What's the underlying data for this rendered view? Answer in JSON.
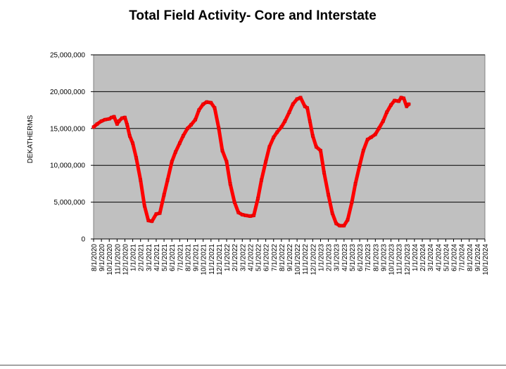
{
  "chart_data": {
    "type": "line",
    "title": "Total Field Activity- Core and Interstate",
    "xlabel": "",
    "ylabel": "DEKATHERMS",
    "ylim": [
      0,
      25000000
    ],
    "yticks": [
      0,
      5000000,
      10000000,
      15000000,
      20000000,
      25000000
    ],
    "ytick_labels": [
      "0",
      "5,000,000",
      "10,000,000",
      "15,000,000",
      "20,000,000",
      "25,000,000"
    ],
    "xtick_labels": [
      "8/1/2020",
      "9/1/2020",
      "10/1/2020",
      "11/1/2020",
      "12/1/2020",
      "1/1/2021",
      "2/1/2021",
      "3/1/2021",
      "4/1/2021",
      "5/1/2021",
      "6/1/2021",
      "7/1/2021",
      "8/1/2021",
      "9/1/2021",
      "10/1/2021",
      "11/1/2021",
      "12/1/2021",
      "1/1/2022",
      "2/1/2022",
      "3/1/2022",
      "4/1/2022",
      "5/1/2022",
      "6/1/2022",
      "7/1/2022",
      "8/1/2022",
      "9/1/2022",
      "10/1/2022",
      "11/1/2022",
      "12/1/2022",
      "1/1/2023",
      "2/1/2023",
      "3/1/2023",
      "4/1/2023",
      "5/1/2023",
      "6/1/2023",
      "7/1/2023",
      "8/1/2023",
      "9/1/2023",
      "10/1/2023",
      "11/1/2023",
      "12/1/2023",
      "1/1/2024",
      "2/1/2024",
      "3/1/2024",
      "4/1/2024",
      "5/1/2024",
      "6/1/2024",
      "7/1/2024",
      "8/1/2024",
      "9/1/2024",
      "10/1/2024"
    ],
    "grid": {
      "horizontal": true,
      "vertical": false
    },
    "colors": {
      "plot_background": "#c0c0c0",
      "series": "#ff0000",
      "grid": "#000000"
    },
    "series": [
      {
        "x": [
          "8/1/2020",
          "8/15/2020",
          "9/1/2020",
          "9/15/2020",
          "10/1/2020",
          "10/10/2020",
          "10/20/2020",
          "11/1/2020",
          "11/8/2020",
          "11/20/2020",
          "12/1/2020",
          "12/10/2020",
          "12/20/2020",
          "1/1/2021",
          "1/15/2021",
          "2/1/2021",
          "2/15/2021",
          "3/1/2021",
          "3/15/2021",
          "4/1/2021",
          "4/15/2021",
          "5/1/2021",
          "5/15/2021",
          "6/1/2021",
          "6/15/2021",
          "7/1/2021",
          "7/15/2021",
          "8/1/2021",
          "8/15/2021",
          "9/1/2021",
          "9/15/2021",
          "10/1/2021",
          "10/15/2021",
          "11/1/2021",
          "11/15/2021",
          "12/1/2021",
          "12/15/2021",
          "1/1/2022",
          "1/15/2022",
          "2/1/2022",
          "2/15/2022",
          "3/1/2022",
          "3/15/2022",
          "4/1/2022",
          "4/15/2022",
          "5/1/2022",
          "5/15/2022",
          "6/1/2022",
          "6/15/2022",
          "7/1/2022",
          "7/15/2022",
          "8/1/2022",
          "8/15/2022",
          "9/1/2022",
          "9/15/2022",
          "10/1/2022",
          "10/15/2022",
          "11/1/2022",
          "11/10/2022",
          "11/20/2022",
          "12/1/2022",
          "12/15/2022",
          "1/1/2023",
          "1/15/2023",
          "2/1/2023",
          "2/15/2023",
          "3/1/2023",
          "3/15/2023",
          "4/1/2023",
          "4/15/2023",
          "5/1/2023",
          "5/15/2023",
          "6/1/2023",
          "6/15/2023",
          "7/1/2023",
          "7/15/2023",
          "8/1/2023",
          "8/15/2023",
          "9/1/2023",
          "9/15/2023",
          "10/1/2023",
          "10/15/2023",
          "11/1/2023",
          "11/10/2023",
          "11/20/2023",
          "12/1/2023",
          "12/5/2023",
          "12/10/2023"
        ],
        "values": [
          15200000,
          15600000,
          16000000,
          16200000,
          16300000,
          16500000,
          16600000,
          15600000,
          16000000,
          16400000,
          16500000,
          15500000,
          14000000,
          13000000,
          11000000,
          8000000,
          4500000,
          2500000,
          2400000,
          3400000,
          3500000,
          6000000,
          8000000,
          10500000,
          11800000,
          13000000,
          14000000,
          15000000,
          15500000,
          16200000,
          17500000,
          18300000,
          18600000,
          18500000,
          17800000,
          15000000,
          12000000,
          10500000,
          7500000,
          5000000,
          3600000,
          3300000,
          3200000,
          3100000,
          3200000,
          5500000,
          8000000,
          10500000,
          12500000,
          13800000,
          14500000,
          15200000,
          16000000,
          17200000,
          18300000,
          19000000,
          19200000,
          18000000,
          17800000,
          16000000,
          14000000,
          12500000,
          12000000,
          9000000,
          6000000,
          3500000,
          2100000,
          1800000,
          1800000,
          2600000,
          5000000,
          7500000,
          10000000,
          12000000,
          13500000,
          13800000,
          14200000,
          15000000,
          16000000,
          17200000,
          18200000,
          18800000,
          18700000,
          19200000,
          19100000,
          18000000,
          18200000,
          18300000
        ]
      }
    ]
  }
}
